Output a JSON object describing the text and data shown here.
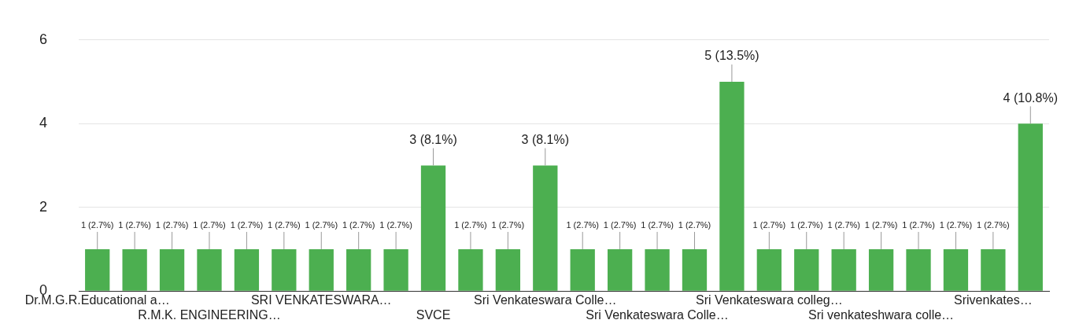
{
  "chart_data": {
    "type": "bar",
    "categories": [
      "Dr.M.G.R.Educational a…",
      null,
      null,
      "R.M.K. ENGINEERING…",
      null,
      null,
      "SRI VENKATESWARA…",
      null,
      null,
      "SVCE",
      null,
      null,
      "Sri Venkateswara Colle…",
      null,
      null,
      "Sri Venkateswara Colle…",
      null,
      null,
      "Sri Venkateswara colleg…",
      null,
      null,
      "Sri venkateshwara colle…",
      null,
      null,
      "Srivenkates…",
      null
    ],
    "values": [
      1,
      1,
      1,
      1,
      1,
      1,
      1,
      1,
      1,
      3,
      1,
      1,
      3,
      1,
      1,
      1,
      1,
      5,
      1,
      1,
      1,
      1,
      1,
      1,
      1,
      4
    ],
    "value_labels": [
      "1 (2.7%)",
      "1 (2.7%)",
      "1 (2.7%)",
      "1 (2.7%)",
      "1 (2.7%)",
      "1 (2.7%)",
      "1 (2.7%)",
      "1 (2.7%)",
      "1 (2.7%)",
      "3 (8.1%)",
      "1 (2.7%)",
      "1 (2.7%)",
      "3 (8.1%)",
      "1 (2.7%)",
      "1 (2.7%)",
      "1 (2.7%)",
      "1 (2.7%)",
      "5 (13.5%)",
      "1 (2.7%)",
      "1 (2.7%)",
      "1 (2.7%)",
      "1 (2.7%)",
      "1 (2.7%)",
      "1 (2.7%)",
      "1 (2.7%)",
      "4 (10.8%)"
    ],
    "color": "#4caf50",
    "ylim": [
      0,
      6
    ],
    "yticks": [
      0,
      2,
      4,
      6
    ],
    "grid": "y",
    "legend": false
  }
}
